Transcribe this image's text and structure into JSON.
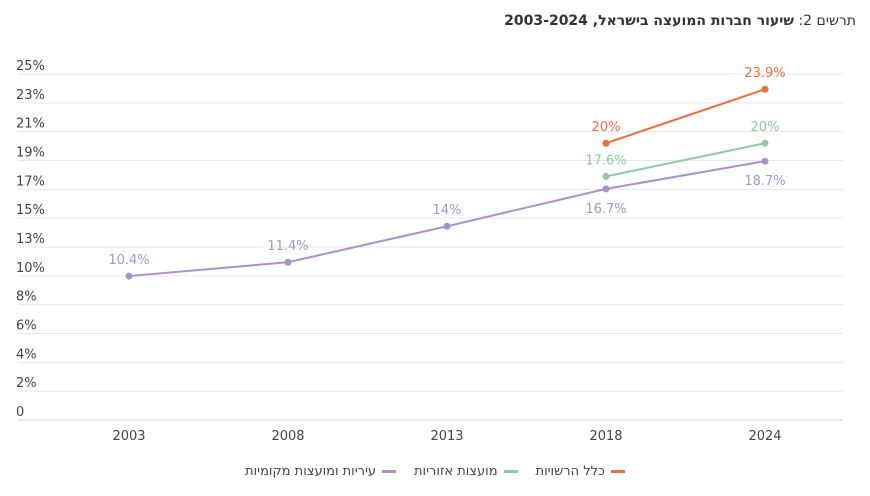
{
  "title": {
    "prefix": "תרשים 2:",
    "main": "שיעור חברות המועצה בישראל, 2003-2024"
  },
  "chart_data": {
    "type": "line",
    "x": [
      "2003",
      "2008",
      "2013",
      "2018",
      "2024"
    ],
    "ylim": [
      0,
      25
    ],
    "y_ticks": [
      "0",
      "2%",
      "4%",
      "6%",
      "8%",
      "10%",
      "13%",
      "15%",
      "17%",
      "19%",
      "21%",
      "23%",
      "25%"
    ],
    "grid": true,
    "legend_position": "bottom",
    "series": [
      {
        "name": "כלל הרשויות",
        "color": "#f26b3a",
        "values": [
          null,
          null,
          null,
          20,
          23.9
        ],
        "labels": [
          "",
          "",
          "",
          "20%",
          "23.9%"
        ],
        "label_side": "above"
      },
      {
        "name": "מועצות אזוריות",
        "color": "#8cc9a4",
        "values": [
          null,
          null,
          null,
          17.6,
          20
        ],
        "labels": [
          "",
          "",
          "",
          "17.6%",
          "20%"
        ],
        "label_side": "above"
      },
      {
        "name": "עיריות ומועצות מקומיות",
        "color": "#a893cc",
        "values": [
          10.4,
          11.4,
          14,
          16.7,
          18.7
        ],
        "labels": [
          "10.4%",
          "11.4%",
          "14%",
          "16.7%",
          "18.7%"
        ],
        "label_side": [
          "above",
          "above",
          "above",
          "below",
          "below"
        ]
      }
    ]
  }
}
